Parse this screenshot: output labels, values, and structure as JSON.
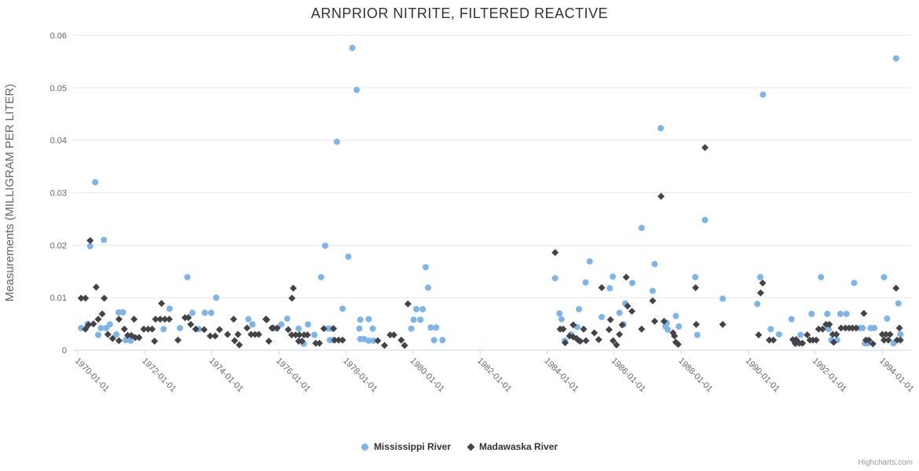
{
  "credits": {
    "label": "Highcharts.com"
  },
  "colors": {
    "grid": "#e6e6e6",
    "axis_line": "#ccd6eb",
    "tick_label": "#666666",
    "axis_title": "#666666",
    "title": "#333333",
    "legend_text": "#333333",
    "credits_text": "#999999"
  },
  "chart_data": {
    "type": "scatter",
    "title": "ARNPRIOR NITRITE, FILTERED REACTIVE",
    "xlabel": "",
    "ylabel": "Measurements (MILLIGRAM PER LITER)",
    "ylim": [
      0,
      0.06
    ],
    "xlim_years": [
      1969.86,
      1994.86
    ],
    "grid": true,
    "legend_position": "bottom-center",
    "y_ticks": [
      {
        "v": 0,
        "label": "0"
      },
      {
        "v": 0.01,
        "label": "0.01"
      },
      {
        "v": 0.02,
        "label": "0.02"
      },
      {
        "v": 0.03,
        "label": "0.03"
      },
      {
        "v": 0.04,
        "label": "0.04"
      },
      {
        "v": 0.05,
        "label": "0.05"
      },
      {
        "v": 0.06,
        "label": "0.06"
      }
    ],
    "x_ticks": [
      {
        "year": 1970,
        "label": "1970-01-01"
      },
      {
        "year": 1972,
        "label": "1972-01-01"
      },
      {
        "year": 1974,
        "label": "1974-01-01"
      },
      {
        "year": 1976,
        "label": "1976-01-01"
      },
      {
        "year": 1978,
        "label": "1978-01-01"
      },
      {
        "year": 1980,
        "label": "1980-01-01"
      },
      {
        "year": 1982,
        "label": "1982-01-01"
      },
      {
        "year": 1984,
        "label": "1984-01-01"
      },
      {
        "year": 1986,
        "label": "1986-01-01"
      },
      {
        "year": 1988,
        "label": "1988-01-01"
      },
      {
        "year": 1990,
        "label": "1990-01-01"
      },
      {
        "year": 1992,
        "label": "1992-01-01"
      },
      {
        "year": 1994,
        "label": "1994-01-01"
      }
    ],
    "series": [
      {
        "name": "Mississippi River",
        "marker": "circle",
        "color": "#7cb5ec",
        "points": [
          [
            1970.1,
            0.0042
          ],
          [
            1970.3,
            0.005
          ],
          [
            1970.37,
            0.0198
          ],
          [
            1970.52,
            0.032
          ],
          [
            1970.61,
            0.0029
          ],
          [
            1970.69,
            0.0042
          ],
          [
            1970.78,
            0.021
          ],
          [
            1970.85,
            0.0042
          ],
          [
            1970.96,
            0.0049
          ],
          [
            1971.15,
            0.003
          ],
          [
            1971.22,
            0.0072
          ],
          [
            1971.35,
            0.0072
          ],
          [
            1971.43,
            0.0019
          ],
          [
            1971.58,
            0.0018
          ],
          [
            1972.56,
            0.004
          ],
          [
            1972.74,
            0.0079
          ],
          [
            1973.05,
            0.0042
          ],
          [
            1973.27,
            0.0139
          ],
          [
            1973.42,
            0.0071
          ],
          [
            1973.61,
            0.004
          ],
          [
            1973.79,
            0.0071
          ],
          [
            1973.98,
            0.0071
          ],
          [
            1974.13,
            0.01
          ],
          [
            1975.09,
            0.0059
          ],
          [
            1975.21,
            0.0049
          ],
          [
            1975.93,
            0.0041
          ],
          [
            1976.07,
            0.0049
          ],
          [
            1976.25,
            0.006
          ],
          [
            1976.59,
            0.0041
          ],
          [
            1976.74,
            0.0012
          ],
          [
            1976.87,
            0.0049
          ],
          [
            1977.06,
            0.0029
          ],
          [
            1977.26,
            0.0139
          ],
          [
            1977.38,
            0.0199
          ],
          [
            1977.47,
            0.0041
          ],
          [
            1977.52,
            0.0019
          ],
          [
            1977.55,
            0.0041
          ],
          [
            1977.6,
            0.0019
          ],
          [
            1977.73,
            0.0397
          ],
          [
            1977.9,
            0.0079
          ],
          [
            1978.07,
            0.0178
          ],
          [
            1978.19,
            0.0576
          ],
          [
            1978.32,
            0.0496
          ],
          [
            1978.4,
            0.0041
          ],
          [
            1978.43,
            0.0058
          ],
          [
            1978.43,
            0.0021
          ],
          [
            1978.54,
            0.0021
          ],
          [
            1978.68,
            0.0059
          ],
          [
            1978.68,
            0.0018
          ],
          [
            1978.8,
            0.0041
          ],
          [
            1978.82,
            0.0018
          ],
          [
            1979.95,
            0.0041
          ],
          [
            1980.02,
            0.0058
          ],
          [
            1980.1,
            0.0078
          ],
          [
            1980.22,
            0.0058
          ],
          [
            1980.29,
            0.0078
          ],
          [
            1980.38,
            0.0158
          ],
          [
            1980.45,
            0.0119
          ],
          [
            1980.53,
            0.0043
          ],
          [
            1980.63,
            0.0019
          ],
          [
            1980.69,
            0.0043
          ],
          [
            1980.88,
            0.0019
          ],
          [
            1984.24,
            0.0137
          ],
          [
            1984.37,
            0.007
          ],
          [
            1984.43,
            0.0059
          ],
          [
            1984.53,
            0.0018
          ],
          [
            1984.72,
            0.003
          ],
          [
            1984.9,
            0.0044
          ],
          [
            1984.95,
            0.0078
          ],
          [
            1985.15,
            0.0129
          ],
          [
            1985.27,
            0.0169
          ],
          [
            1985.63,
            0.0063
          ],
          [
            1985.87,
            0.0118
          ],
          [
            1985.96,
            0.014
          ],
          [
            1986.16,
            0.0071
          ],
          [
            1986.28,
            0.0049
          ],
          [
            1986.33,
            0.0089
          ],
          [
            1986.54,
            0.0128
          ],
          [
            1986.82,
            0.0233
          ],
          [
            1987.15,
            0.0113
          ],
          [
            1987.21,
            0.0164
          ],
          [
            1987.39,
            0.0423
          ],
          [
            1987.53,
            0.0045
          ],
          [
            1987.57,
            0.0052
          ],
          [
            1987.6,
            0.0039
          ],
          [
            1987.84,
            0.0065
          ],
          [
            1987.93,
            0.0045
          ],
          [
            1988.42,
            0.0139
          ],
          [
            1988.48,
            0.0029
          ],
          [
            1988.71,
            0.0248
          ],
          [
            1989.24,
            0.0098
          ],
          [
            1990.27,
            0.0088
          ],
          [
            1990.36,
            0.0139
          ],
          [
            1990.44,
            0.0487
          ],
          [
            1990.67,
            0.004
          ],
          [
            1990.92,
            0.003
          ],
          [
            1991.29,
            0.0059
          ],
          [
            1991.42,
            0.0012
          ],
          [
            1991.56,
            0.0029
          ],
          [
            1991.89,
            0.0069
          ],
          [
            1992.17,
            0.0139
          ],
          [
            1992.36,
            0.0069
          ],
          [
            1992.4,
            0.004
          ],
          [
            1992.48,
            0.0019
          ],
          [
            1992.65,
            0.0019
          ],
          [
            1992.75,
            0.0069
          ],
          [
            1992.93,
            0.0069
          ],
          [
            1993.16,
            0.0128
          ],
          [
            1993.32,
            0.0042
          ],
          [
            1993.41,
            0.0042
          ],
          [
            1993.48,
            0.0013
          ],
          [
            1993.57,
            0.0013
          ],
          [
            1993.65,
            0.0042
          ],
          [
            1993.76,
            0.0042
          ],
          [
            1994.05,
            0.0139
          ],
          [
            1994.14,
            0.006
          ],
          [
            1994.33,
            0.0013
          ],
          [
            1994.41,
            0.0556
          ],
          [
            1994.48,
            0.0089
          ],
          [
            1994.54,
            0.003
          ]
        ]
      },
      {
        "name": "Madawaska River",
        "marker": "diamond",
        "color": "#434348",
        "points": [
          [
            1970.1,
            0.0099
          ],
          [
            1970.23,
            0.0099
          ],
          [
            1970.23,
            0.004
          ],
          [
            1970.32,
            0.0048
          ],
          [
            1970.37,
            0.0209
          ],
          [
            1970.47,
            0.005
          ],
          [
            1970.55,
            0.012
          ],
          [
            1970.61,
            0.0059
          ],
          [
            1970.73,
            0.0069
          ],
          [
            1970.79,
            0.0099
          ],
          [
            1970.9,
            0.003
          ],
          [
            1971.04,
            0.0022
          ],
          [
            1971.23,
            0.0059
          ],
          [
            1971.23,
            0.0018
          ],
          [
            1971.39,
            0.004
          ],
          [
            1971.49,
            0.0028
          ],
          [
            1971.6,
            0.0028
          ],
          [
            1971.68,
            0.0059
          ],
          [
            1971.72,
            0.0024
          ],
          [
            1971.83,
            0.0024
          ],
          [
            1971.97,
            0.004
          ],
          [
            1972.1,
            0.004
          ],
          [
            1972.22,
            0.004
          ],
          [
            1972.29,
            0.0017
          ],
          [
            1972.32,
            0.0059
          ],
          [
            1972.46,
            0.0059
          ],
          [
            1972.5,
            0.0089
          ],
          [
            1972.6,
            0.0059
          ],
          [
            1972.73,
            0.0059
          ],
          [
            1972.99,
            0.0019
          ],
          [
            1973.2,
            0.0062
          ],
          [
            1973.3,
            0.0062
          ],
          [
            1973.37,
            0.0049
          ],
          [
            1973.52,
            0.004
          ],
          [
            1973.77,
            0.0039
          ],
          [
            1973.95,
            0.0027
          ],
          [
            1974.1,
            0.0027
          ],
          [
            1974.23,
            0.0039
          ],
          [
            1974.47,
            0.003
          ],
          [
            1974.65,
            0.0059
          ],
          [
            1974.68,
            0.0018
          ],
          [
            1974.78,
            0.003
          ],
          [
            1974.82,
            0.001
          ],
          [
            1975.05,
            0.0042
          ],
          [
            1975.17,
            0.003
          ],
          [
            1975.29,
            0.003
          ],
          [
            1975.4,
            0.003
          ],
          [
            1975.61,
            0.0059
          ],
          [
            1975.64,
            0.0058
          ],
          [
            1975.7,
            0.0017
          ],
          [
            1975.79,
            0.0042
          ],
          [
            1975.83,
            0.0042
          ],
          [
            1975.95,
            0.0042
          ],
          [
            1976.28,
            0.0039
          ],
          [
            1976.38,
            0.0029
          ],
          [
            1976.39,
            0.0099
          ],
          [
            1976.43,
            0.0118
          ],
          [
            1976.5,
            0.0029
          ],
          [
            1976.61,
            0.0029
          ],
          [
            1976.59,
            0.0017
          ],
          [
            1976.69,
            0.0017
          ],
          [
            1976.75,
            0.0029
          ],
          [
            1976.85,
            0.0029
          ],
          [
            1977.1,
            0.0013
          ],
          [
            1977.21,
            0.0013
          ],
          [
            1977.34,
            0.0041
          ],
          [
            1977.63,
            0.0041
          ],
          [
            1977.66,
            0.0019
          ],
          [
            1977.78,
            0.0019
          ],
          [
            1977.9,
            0.0019
          ],
          [
            1978.95,
            0.0018
          ],
          [
            1979.15,
            0.0009
          ],
          [
            1979.32,
            0.0029
          ],
          [
            1979.43,
            0.0029
          ],
          [
            1979.65,
            0.0019
          ],
          [
            1979.75,
            0.0009
          ],
          [
            1979.85,
            0.0088
          ],
          [
            1984.24,
            0.0186
          ],
          [
            1984.39,
            0.004
          ],
          [
            1984.48,
            0.004
          ],
          [
            1984.54,
            0.0014
          ],
          [
            1984.67,
            0.0027
          ],
          [
            1984.78,
            0.0048
          ],
          [
            1984.78,
            0.0025
          ],
          [
            1984.88,
            0.0022
          ],
          [
            1984.93,
            0.0019
          ],
          [
            1984.99,
            0.0017
          ],
          [
            1985.09,
            0.004
          ],
          [
            1985.16,
            0.0018
          ],
          [
            1985.41,
            0.0033
          ],
          [
            1985.54,
            0.002
          ],
          [
            1985.63,
            0.0119
          ],
          [
            1985.85,
            0.0039
          ],
          [
            1985.89,
            0.0058
          ],
          [
            1985.97,
            0.0018
          ],
          [
            1986.07,
            0.001
          ],
          [
            1986.16,
            0.003
          ],
          [
            1986.24,
            0.0048
          ],
          [
            1986.36,
            0.0139
          ],
          [
            1986.4,
            0.0084
          ],
          [
            1986.53,
            0.0074
          ],
          [
            1986.82,
            0.004
          ],
          [
            1987.15,
            0.0094
          ],
          [
            1987.21,
            0.0055
          ],
          [
            1987.4,
            0.0293
          ],
          [
            1987.49,
            0.0055
          ],
          [
            1987.76,
            0.0033
          ],
          [
            1987.8,
            0.0027
          ],
          [
            1987.84,
            0.0015
          ],
          [
            1987.91,
            0.0011
          ],
          [
            1988.43,
            0.0119
          ],
          [
            1988.45,
            0.0049
          ],
          [
            1988.71,
            0.0386
          ],
          [
            1989.24,
            0.0049
          ],
          [
            1990.31,
            0.0029
          ],
          [
            1990.37,
            0.0109
          ],
          [
            1990.43,
            0.0128
          ],
          [
            1990.63,
            0.0019
          ],
          [
            1990.75,
            0.0019
          ],
          [
            1991.33,
            0.002
          ],
          [
            1991.4,
            0.0013
          ],
          [
            1991.43,
            0.002
          ],
          [
            1991.53,
            0.0013
          ],
          [
            1991.62,
            0.0013
          ],
          [
            1991.76,
            0.0029
          ],
          [
            1991.84,
            0.0019
          ],
          [
            1991.93,
            0.0019
          ],
          [
            1992.03,
            0.0019
          ],
          [
            1992.1,
            0.004
          ],
          [
            1992.22,
            0.004
          ],
          [
            1992.32,
            0.0049
          ],
          [
            1992.42,
            0.0049
          ],
          [
            1992.52,
            0.003
          ],
          [
            1992.55,
            0.0015
          ],
          [
            1992.63,
            0.003
          ],
          [
            1992.77,
            0.0042
          ],
          [
            1992.9,
            0.0042
          ],
          [
            1993.01,
            0.0042
          ],
          [
            1993.11,
            0.0042
          ],
          [
            1993.22,
            0.0042
          ],
          [
            1993.45,
            0.007
          ],
          [
            1993.51,
            0.0019
          ],
          [
            1993.6,
            0.0019
          ],
          [
            1993.72,
            0.0012
          ],
          [
            1994.0,
            0.003
          ],
          [
            1994.05,
            0.0019
          ],
          [
            1994.11,
            0.003
          ],
          [
            1994.18,
            0.0019
          ],
          [
            1994.23,
            0.003
          ],
          [
            1994.41,
            0.0118
          ],
          [
            1994.44,
            0.0019
          ],
          [
            1994.51,
            0.0042
          ],
          [
            1994.54,
            0.0019
          ]
        ]
      }
    ]
  }
}
